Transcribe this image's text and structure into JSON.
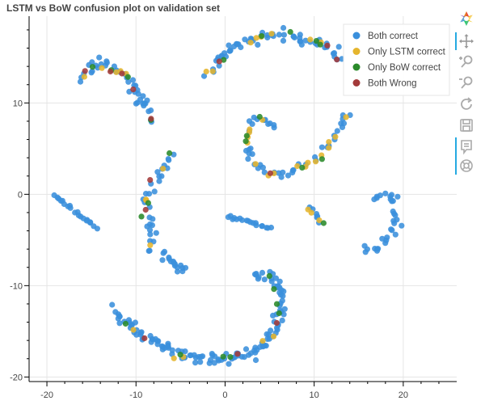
{
  "chart_data": {
    "type": "scatter",
    "title": "LSTM vs BoW confusion plot on validation set",
    "xlabel": "",
    "ylabel": "",
    "xlim": [
      -22,
      26
    ],
    "ylim": [
      -20.5,
      19.5
    ],
    "x_ticks": [
      -20,
      -10,
      0,
      10,
      20
    ],
    "y_ticks": [
      -20,
      -10,
      0,
      10
    ],
    "grid": true,
    "legend_position": "top-right",
    "series": [
      {
        "name": "Both correct",
        "color": "#3a8fdc"
      },
      {
        "name": "Only LSTM correct",
        "color": "#e5b52d"
      },
      {
        "name": "Only BoW correct",
        "color": "#2a8a2a"
      },
      {
        "name": "Both Wrong",
        "color": "#a33a3a"
      }
    ],
    "clusters": [
      {
        "comment_free": true,
        "path": [
          [
            -16.3,
            12.5
          ],
          [
            -15.2,
            13.7
          ],
          [
            -14,
            14.3
          ],
          [
            -12.5,
            14
          ],
          [
            -11,
            13
          ],
          [
            -10,
            11.5
          ],
          [
            -9,
            9.8
          ],
          [
            -8.3,
            8
          ]
        ],
        "n": 55,
        "spread": 0.45,
        "mix": [
          0.74,
          0.14,
          0.07,
          0.05
        ]
      },
      {
        "path": [
          [
            -2,
            12.8
          ],
          [
            -0.6,
            15
          ],
          [
            1.5,
            16.5
          ],
          [
            4,
            17.3
          ],
          [
            7,
            17.4
          ],
          [
            10,
            16.8
          ],
          [
            12,
            15.8
          ],
          [
            13,
            14.8
          ]
        ],
        "n": 75,
        "spread": 0.4,
        "mix": [
          0.78,
          0.1,
          0.08,
          0.04
        ]
      },
      {
        "path": [
          [
            3,
            8
          ],
          [
            2.2,
            6.6
          ],
          [
            2.6,
            4.6
          ],
          [
            3.4,
            3.1
          ],
          [
            5,
            2.4
          ],
          [
            7,
            2.4
          ],
          [
            9,
            3.1
          ],
          [
            10.8,
            4.2
          ],
          [
            12,
            5.8
          ],
          [
            13,
            7.5
          ],
          [
            13.8,
            9
          ]
        ],
        "n": 60,
        "spread": 0.35,
        "mix": [
          0.66,
          0.2,
          0.1,
          0.04
        ]
      },
      {
        "path": [
          [
            3.3,
            8.2
          ],
          [
            4.4,
            8.2
          ],
          [
            5.2,
            7.6
          ],
          [
            5.8,
            7.1
          ]
        ],
        "n": 10,
        "spread": 0.25,
        "mix": [
          0.75,
          0.15,
          0.1,
          0
        ]
      },
      {
        "path": [
          [
            -5.7,
            4.5
          ],
          [
            -6.5,
            3
          ],
          [
            -8,
            1.4
          ],
          [
            -9,
            -0.8
          ],
          [
            -8.6,
            -3
          ],
          [
            -8.2,
            -5
          ],
          [
            -8.6,
            -6.3
          ]
        ],
        "n": 38,
        "spread": 0.38,
        "mix": [
          0.82,
          0.12,
          0.04,
          0.02
        ]
      },
      {
        "path": [
          [
            -7,
            -6.5
          ],
          [
            -6,
            -7.3
          ],
          [
            -5.2,
            -8.1
          ],
          [
            -4.4,
            -8.1
          ]
        ],
        "n": 16,
        "spread": 0.3,
        "mix": [
          0.94,
          0.06,
          0,
          0
        ]
      },
      {
        "path": [
          [
            -19.2,
            0
          ],
          [
            -18,
            -1
          ],
          [
            -16.8,
            -2
          ],
          [
            -15.5,
            -2.9
          ],
          [
            -14.3,
            -3.7
          ]
        ],
        "n": 20,
        "spread": 0.12,
        "mix": [
          1,
          0,
          0,
          0
        ]
      },
      {
        "path": [
          [
            0.2,
            -2.4
          ],
          [
            1.4,
            -2.7
          ],
          [
            2.9,
            -3.1
          ],
          [
            4.2,
            -3.5
          ],
          [
            5.2,
            -3.7
          ]
        ],
        "n": 18,
        "spread": 0.12,
        "mix": [
          0.9,
          0,
          0,
          0.1
        ]
      },
      {
        "path": [
          [
            9,
            -1.6
          ],
          [
            9.8,
            -1.7
          ],
          [
            10.4,
            -2.6
          ],
          [
            11,
            -3.3
          ]
        ],
        "n": 10,
        "spread": 0.22,
        "mix": [
          0.4,
          0.3,
          0.3,
          0
        ]
      },
      {
        "path": [
          [
            17,
            -0.5
          ],
          [
            18.7,
            0.3
          ],
          [
            19,
            -1.3
          ],
          [
            19.1,
            -3
          ],
          [
            18.6,
            -4.5
          ],
          [
            17.3,
            -5.6
          ],
          [
            15.5,
            -6.3
          ]
        ],
        "n": 32,
        "spread": 0.35,
        "mix": [
          1,
          0,
          0,
          0
        ]
      },
      {
        "path": [
          [
            3.3,
            -8.6
          ],
          [
            5.5,
            -9.1
          ],
          [
            6.2,
            -10.6
          ],
          [
            6.4,
            -12.6
          ],
          [
            5.8,
            -14.5
          ],
          [
            4.4,
            -16.2
          ],
          [
            2.4,
            -17.5
          ],
          [
            0,
            -18
          ],
          [
            -2.5,
            -18
          ],
          [
            -5,
            -17.6
          ],
          [
            -7.6,
            -16.3
          ],
          [
            -9.8,
            -15.2
          ],
          [
            -11.3,
            -13.9
          ],
          [
            -12.3,
            -12.6
          ]
        ],
        "n": 150,
        "spread": 0.45,
        "mix": [
          0.88,
          0.06,
          0.03,
          0.03
        ]
      }
    ]
  },
  "toolbar": {
    "logo": "bokeh-logo-icon",
    "tools": [
      "pan-icon",
      "box-zoom-icon",
      "wheel-zoom-icon",
      "reset-icon",
      "save-icon",
      "hover-icon",
      "help-icon"
    ]
  }
}
